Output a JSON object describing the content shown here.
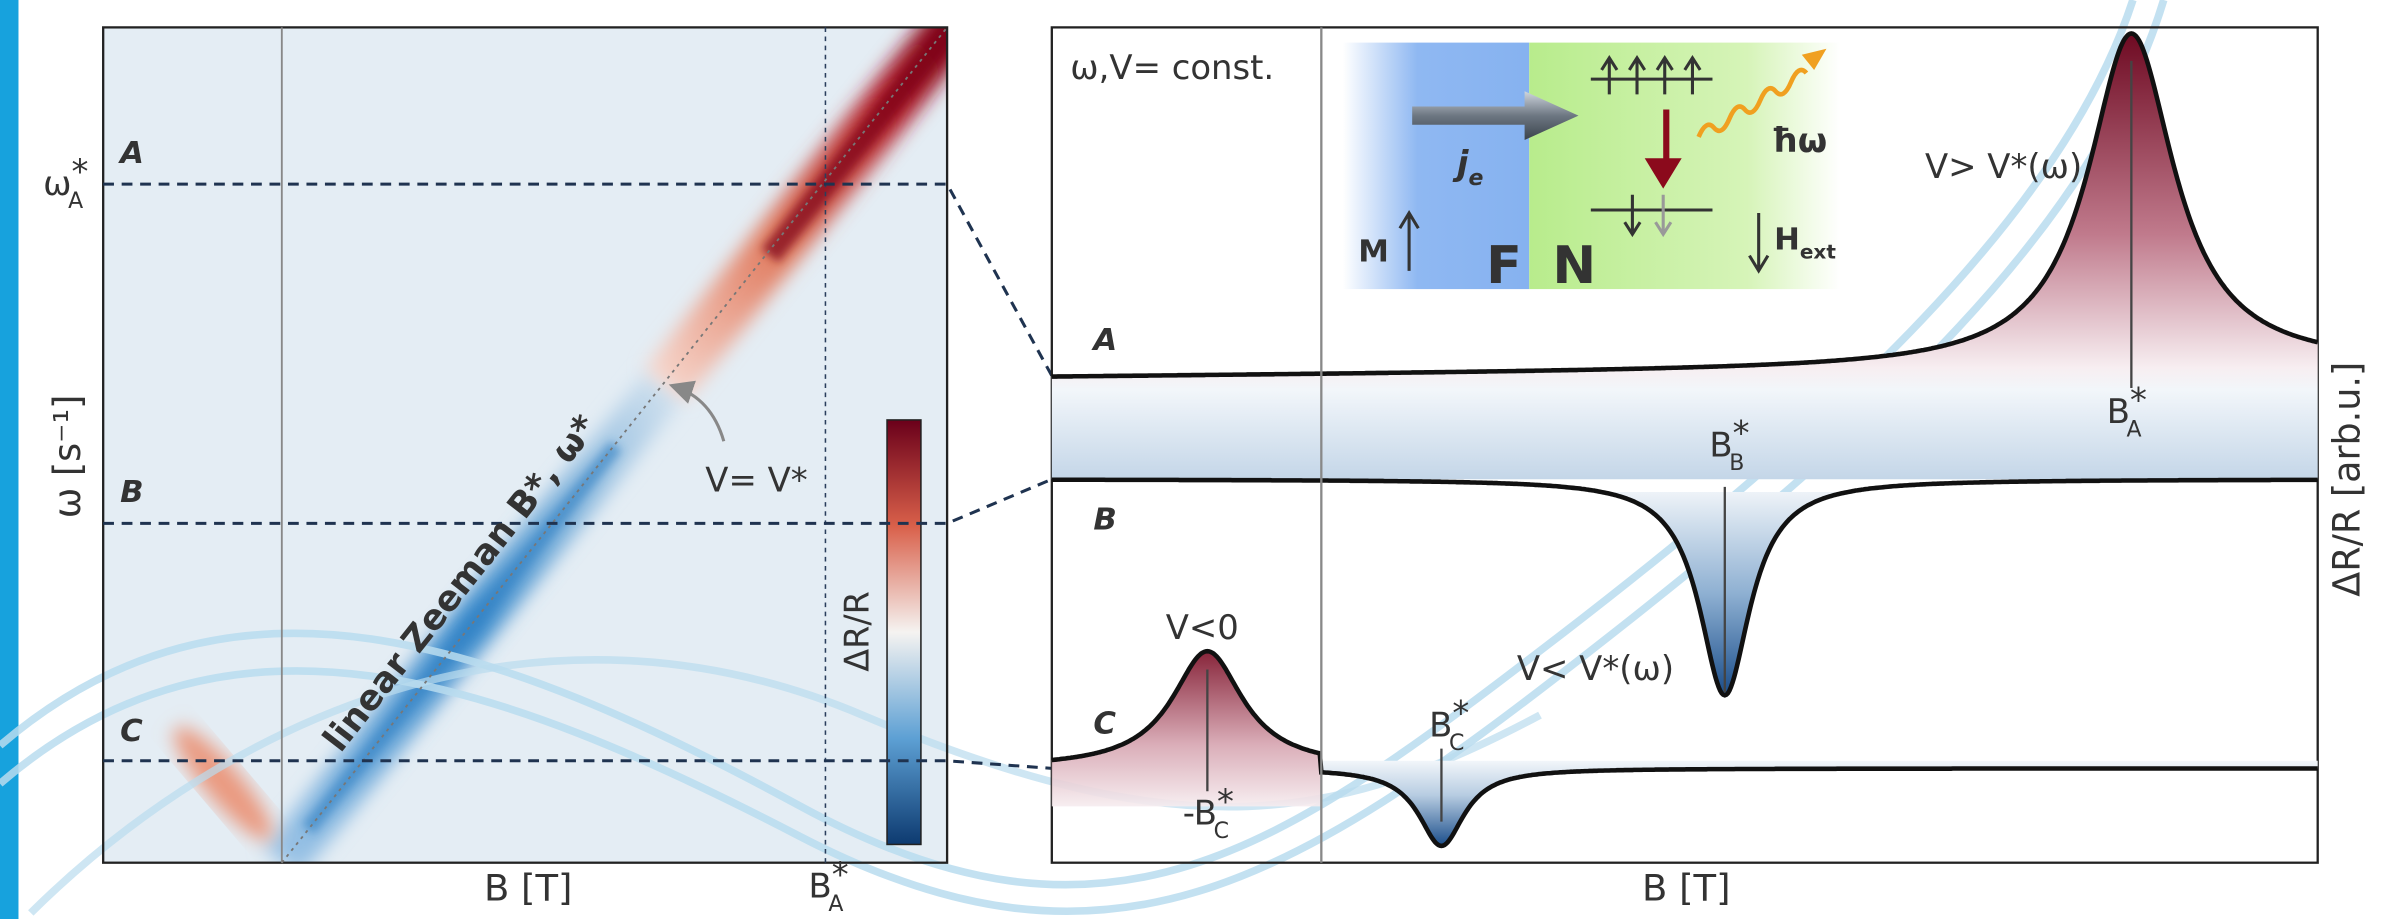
{
  "left_panel": {
    "omega_a": {
      "base": "ω",
      "sub": "A",
      "sup": "*"
    },
    "row_labels": [
      "A",
      "B",
      "C"
    ],
    "y_axis_label": "ω [s⁻¹]",
    "x_axis_label": "B [T]",
    "b_a": {
      "base": "B",
      "sub": "A",
      "sup": "*"
    },
    "diagonal_label": "linear Zeeman B*, ω*",
    "arrow_label": "V= V*",
    "colorbar_label": "ΔR/R"
  },
  "right_panel": {
    "condition": "ω,V= const.",
    "row_labels": [
      "A",
      "B",
      "C"
    ],
    "label_a": "V> V*(ω)",
    "b_a": {
      "base": "B",
      "sub": "A",
      "sup": "*"
    },
    "b_b": {
      "base": "B",
      "sub": "B",
      "sup": "*"
    },
    "label_b": "V< V*(ω)",
    "label_c": "V<0",
    "minus_b_c": {
      "base": "-B",
      "sub": "C",
      "sup": "*"
    },
    "b_c": {
      "base": "B",
      "sub": "C",
      "sup": "*"
    },
    "y_axis_label": "ΔR/R [arb.u.]",
    "x_axis_label": "B [T]"
  },
  "inset": {
    "current": {
      "base": "j",
      "sub": "e"
    },
    "photon": "ħω",
    "magnetization": "M",
    "ferromagnet": "F",
    "normal_metal": "N",
    "field": {
      "base": "H",
      "sub": "ext"
    }
  }
}
